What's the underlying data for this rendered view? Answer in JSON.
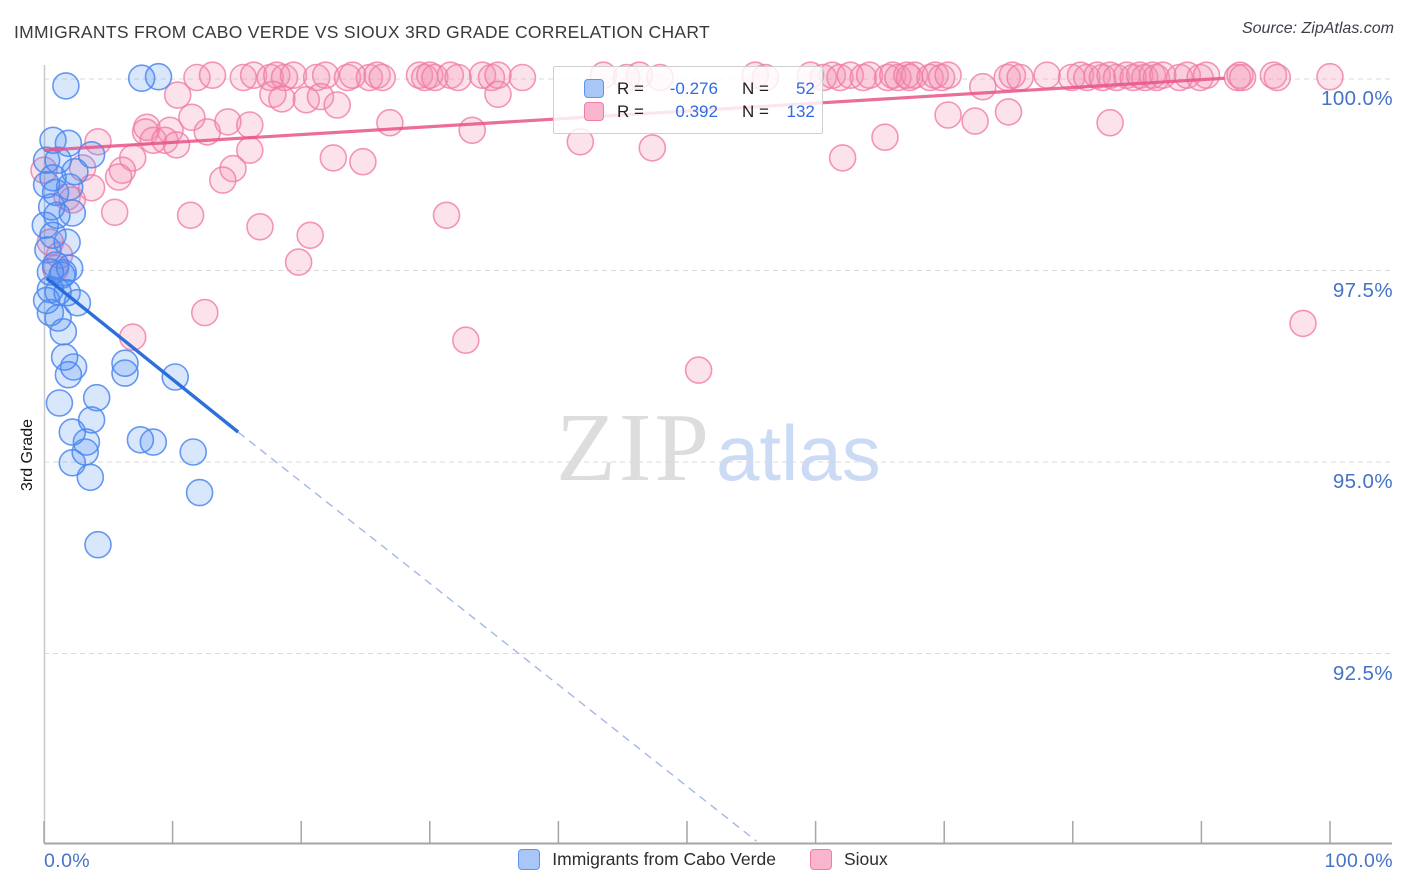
{
  "header": {
    "title": "IMMIGRANTS FROM CABO VERDE VS SIOUX 3RD GRADE CORRELATION CHART",
    "source": "Source: ZipAtlas.com"
  },
  "axes": {
    "y_label": "3rd Grade",
    "y_ticks": [
      {
        "label": "100.0%",
        "value": 100.0
      },
      {
        "label": "97.5%",
        "value": 97.5
      },
      {
        "label": "95.0%",
        "value": 95.0
      },
      {
        "label": "92.5%",
        "value": 92.5
      }
    ],
    "x_tick_labels": [
      {
        "label": "0.0%",
        "value": 0
      },
      {
        "label": "100.0%",
        "value": 100
      }
    ],
    "x_minor_tick_values": [
      0,
      10,
      20,
      30,
      40,
      50,
      60,
      70,
      80,
      90,
      100
    ]
  },
  "legend_box": {
    "rows": [
      {
        "series": "Immigrants from Cabo Verde",
        "r_label": "R =",
        "r_value": "-0.276",
        "n_label": "N =",
        "n_value": "52"
      },
      {
        "series": "Sioux",
        "r_label": "R =",
        "r_value": "0.392",
        "n_label": "N =",
        "n_value": "132"
      }
    ]
  },
  "bottom_legend": {
    "items": [
      {
        "label": "Immigrants from Cabo Verde"
      },
      {
        "label": "Sioux"
      }
    ]
  },
  "watermark": {
    "zip": "ZIP",
    "atlas": "atlas"
  },
  "colors": {
    "label_blue": "#4573c8",
    "value_blue": "#2e6be5",
    "grid": "#d9d9d9",
    "axis": "#a6a6a6",
    "left_axis": "#c9c9c9",
    "blue_stroke": "#4c87f0",
    "blue_fill": "#4285f4",
    "pink_stroke": "#f07ca7",
    "pink_fill": "#f48fb1",
    "trend_blue": "#2368d8",
    "trend_blue_dash": "#9fb3e6",
    "trend_pink": "#e8538a"
  },
  "chart_data": {
    "type": "scatter",
    "title": "IMMIGRANTS FROM CABO VERDE VS SIOUX 3RD GRADE CORRELATION CHART",
    "xlabel": "",
    "ylabel": "3rd Grade",
    "xlim": [
      0,
      104.8
    ],
    "ylim": [
      90.0,
      100.2
    ],
    "grid": true,
    "legend_position": "top-center",
    "series": [
      {
        "name": "Immigrants from Cabo Verde",
        "R": -0.276,
        "N": 52,
        "points": [
          [
            1.7,
            99.91
          ],
          [
            7.6,
            100.01
          ],
          [
            8.9,
            100.03
          ],
          [
            0.7,
            99.2
          ],
          [
            1.9,
            99.16
          ],
          [
            1.1,
            98.94
          ],
          [
            3.7,
            99.01
          ],
          [
            2.4,
            98.79
          ],
          [
            0.7,
            98.71
          ],
          [
            2.0,
            98.59
          ],
          [
            0.9,
            98.52
          ],
          [
            0.6,
            98.33
          ],
          [
            1.0,
            98.22
          ],
          [
            2.2,
            98.25
          ],
          [
            0.7,
            97.96
          ],
          [
            1.8,
            97.87
          ],
          [
            0.3,
            97.77
          ],
          [
            2.0,
            97.53
          ],
          [
            0.5,
            97.48
          ],
          [
            1.5,
            97.47
          ],
          [
            0.2,
            98.94
          ],
          [
            0.2,
            98.62
          ],
          [
            0.1,
            98.09
          ],
          [
            0.2,
            97.11
          ],
          [
            0.9,
            97.57
          ],
          [
            1.4,
            97.44
          ],
          [
            0.5,
            97.25
          ],
          [
            1.1,
            97.22
          ],
          [
            1.8,
            97.21
          ],
          [
            2.6,
            97.08
          ],
          [
            0.5,
            96.95
          ],
          [
            1.1,
            96.88
          ],
          [
            1.5,
            96.7
          ],
          [
            1.6,
            96.37
          ],
          [
            2.3,
            96.24
          ],
          [
            1.9,
            96.14
          ],
          [
            6.3,
            96.29
          ],
          [
            6.3,
            96.16
          ],
          [
            10.2,
            96.11
          ],
          [
            1.2,
            95.77
          ],
          [
            4.1,
            95.84
          ],
          [
            3.7,
            95.55
          ],
          [
            2.2,
            95.39
          ],
          [
            3.3,
            95.26
          ],
          [
            3.2,
            95.13
          ],
          [
            2.2,
            94.99
          ],
          [
            3.6,
            94.8
          ],
          [
            7.5,
            95.29
          ],
          [
            8.5,
            95.26
          ],
          [
            11.6,
            95.13
          ],
          [
            12.1,
            94.6
          ],
          [
            4.2,
            93.92
          ]
        ]
      },
      {
        "name": "Sioux",
        "R": 0.392,
        "N": 132,
        "points": [
          [
            11.9,
            100.02
          ],
          [
            13.1,
            100.05
          ],
          [
            15.5,
            100.02
          ],
          [
            16.3,
            100.05
          ],
          [
            17.6,
            100.02
          ],
          [
            18.1,
            100.05
          ],
          [
            18.7,
            100.02
          ],
          [
            19.4,
            100.05
          ],
          [
            21.2,
            100.02
          ],
          [
            21.9,
            100.05
          ],
          [
            23.6,
            100.02
          ],
          [
            24.0,
            100.05
          ],
          [
            25.3,
            100.02
          ],
          [
            25.9,
            100.05
          ],
          [
            26.3,
            100.02
          ],
          [
            29.2,
            100.05
          ],
          [
            29.6,
            100.02
          ],
          [
            30.0,
            100.05
          ],
          [
            30.4,
            100.02
          ],
          [
            31.6,
            100.05
          ],
          [
            32.2,
            100.02
          ],
          [
            34.1,
            100.05
          ],
          [
            34.8,
            100.02
          ],
          [
            35.3,
            100.05
          ],
          [
            37.2,
            100.02
          ],
          [
            43.5,
            100.05
          ],
          [
            45.3,
            100.02
          ],
          [
            46.3,
            100.05
          ],
          [
            47.9,
            100.02
          ],
          [
            55.3,
            100.05
          ],
          [
            56.1,
            100.02
          ],
          [
            59.6,
            100.05
          ],
          [
            60.6,
            100.02
          ],
          [
            61.3,
            100.05
          ],
          [
            61.9,
            100.02
          ],
          [
            62.7,
            100.05
          ],
          [
            63.7,
            100.02
          ],
          [
            64.2,
            100.05
          ],
          [
            65.6,
            100.02
          ],
          [
            66.0,
            100.05
          ],
          [
            66.4,
            100.02
          ],
          [
            67.1,
            100.05
          ],
          [
            67.3,
            100.02
          ],
          [
            67.7,
            100.05
          ],
          [
            68.9,
            100.02
          ],
          [
            69.3,
            100.05
          ],
          [
            69.8,
            100.02
          ],
          [
            70.3,
            100.05
          ],
          [
            74.9,
            100.02
          ],
          [
            75.3,
            100.05
          ],
          [
            75.9,
            100.02
          ],
          [
            78.0,
            100.05
          ],
          [
            79.9,
            100.02
          ],
          [
            80.6,
            100.05
          ],
          [
            81.1,
            100.02
          ],
          [
            81.9,
            100.05
          ],
          [
            82.3,
            100.02
          ],
          [
            82.9,
            100.05
          ],
          [
            83.4,
            100.02
          ],
          [
            84.2,
            100.05
          ],
          [
            84.7,
            100.02
          ],
          [
            85.2,
            100.05
          ],
          [
            85.6,
            100.02
          ],
          [
            86.2,
            100.05
          ],
          [
            86.5,
            100.02
          ],
          [
            87.0,
            100.05
          ],
          [
            88.3,
            100.02
          ],
          [
            88.9,
            100.05
          ],
          [
            89.9,
            100.02
          ],
          [
            90.4,
            100.05
          ],
          [
            92.8,
            100.02
          ],
          [
            93.0,
            100.05
          ],
          [
            93.2,
            100.02
          ],
          [
            95.6,
            100.05
          ],
          [
            95.9,
            100.02
          ],
          [
            100.0,
            100.03
          ],
          [
            10.4,
            99.79
          ],
          [
            17.8,
            99.8
          ],
          [
            18.5,
            99.74
          ],
          [
            20.4,
            99.73
          ],
          [
            21.5,
            99.77
          ],
          [
            22.8,
            99.66
          ],
          [
            35.3,
            99.8
          ],
          [
            73.0,
            99.9
          ],
          [
            8.0,
            99.37
          ],
          [
            9.8,
            99.33
          ],
          [
            11.5,
            99.5
          ],
          [
            12.7,
            99.31
          ],
          [
            14.3,
            99.44
          ],
          [
            16.0,
            99.4
          ],
          [
            26.9,
            99.43
          ],
          [
            33.3,
            99.33
          ],
          [
            41.7,
            99.18
          ],
          [
            47.3,
            99.1
          ],
          [
            62.1,
            98.97
          ],
          [
            65.4,
            99.24
          ],
          [
            70.3,
            99.53
          ],
          [
            72.4,
            99.45
          ],
          [
            75.0,
            99.57
          ],
          [
            82.9,
            99.43
          ],
          [
            4.2,
            99.18
          ],
          [
            7.9,
            99.31
          ],
          [
            8.5,
            99.2
          ],
          [
            9.4,
            99.2
          ],
          [
            10.3,
            99.14
          ],
          [
            6.9,
            98.97
          ],
          [
            6.1,
            98.81
          ],
          [
            5.8,
            98.72
          ],
          [
            3.0,
            98.84
          ],
          [
            1.8,
            98.46
          ],
          [
            2.2,
            98.42
          ],
          [
            5.5,
            98.26
          ],
          [
            0.5,
            97.87
          ],
          [
            1.2,
            97.7
          ],
          [
            0.9,
            97.53
          ],
          [
            0.0,
            98.81
          ],
          [
            16.0,
            99.07
          ],
          [
            11.4,
            98.22
          ],
          [
            14.7,
            98.83
          ],
          [
            13.9,
            98.68
          ],
          [
            3.7,
            98.58
          ],
          [
            16.8,
            98.07
          ],
          [
            20.7,
            97.96
          ],
          [
            19.8,
            97.61
          ],
          [
            22.5,
            98.97
          ],
          [
            24.8,
            98.92
          ],
          [
            31.3,
            98.22
          ],
          [
            12.5,
            96.95
          ],
          [
            6.9,
            96.63
          ],
          [
            32.8,
            96.59
          ],
          [
            50.9,
            96.2
          ],
          [
            97.9,
            96.81
          ]
        ]
      }
    ],
    "trend_lines": [
      {
        "series": "Immigrants from Cabo Verde",
        "style": "solid",
        "from": [
          0.2,
          97.4
        ],
        "to": [
          15.1,
          95.39
        ]
      },
      {
        "series": "Immigrants from Cabo Verde",
        "style": "dashed",
        "from": [
          15.1,
          95.39
        ],
        "to": [
          55.4,
          90.05
        ]
      },
      {
        "series": "Sioux",
        "style": "solid",
        "from": [
          0.0,
          99.07
        ],
        "to": [
          91.8,
          100.01
        ]
      }
    ]
  }
}
